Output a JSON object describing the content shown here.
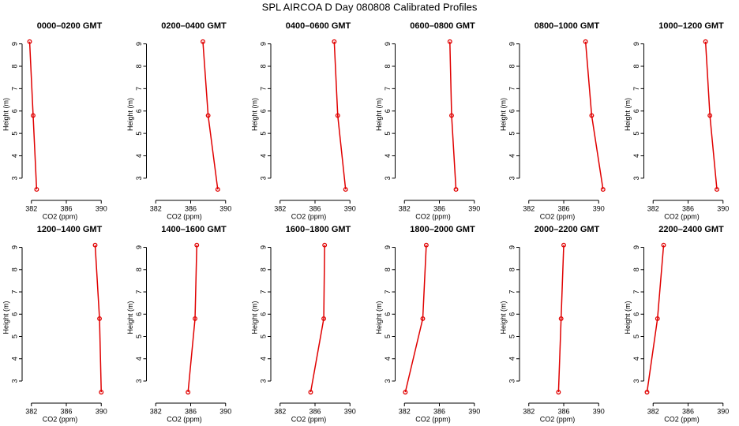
{
  "title": "SPL AIRCOA D  Day 080808  Calibrated Profiles",
  "chart_data": [
    {
      "type": "line",
      "title": "0000–0200 GMT",
      "xlabel": "CO2 (ppm)",
      "ylabel": "Height (m)",
      "color": "#e00000",
      "y": [
        9.1,
        5.8,
        2.5
      ],
      "values": [
        381.8,
        382.2,
        382.6
      ],
      "xlim": [
        381.3,
        390.7
      ],
      "ylim": [
        2.15,
        9.55
      ],
      "xticks": [
        382,
        386,
        390
      ],
      "yticks": [
        3,
        4,
        5,
        6,
        7,
        8,
        9
      ]
    },
    {
      "type": "line",
      "title": "0200–0400 GMT",
      "xlabel": "CO2 (ppm)",
      "ylabel": "Height (m)",
      "color": "#e00000",
      "y": [
        9.1,
        5.8,
        2.5
      ],
      "values": [
        387.4,
        388.0,
        389.1
      ],
      "xlim": [
        381.3,
        390.7
      ],
      "ylim": [
        2.15,
        9.55
      ],
      "xticks": [
        382,
        386,
        390
      ],
      "yticks": [
        3,
        4,
        5,
        6,
        7,
        8,
        9
      ]
    },
    {
      "type": "line",
      "title": "0400–0600 GMT",
      "xlabel": "CO2 (ppm)",
      "ylabel": "Height (m)",
      "color": "#e00000",
      "y": [
        9.1,
        5.8,
        2.5
      ],
      "values": [
        388.2,
        388.6,
        389.5
      ],
      "xlim": [
        381.3,
        390.7
      ],
      "ylim": [
        2.15,
        9.55
      ],
      "xticks": [
        382,
        386,
        390
      ],
      "yticks": [
        3,
        4,
        5,
        6,
        7,
        8,
        9
      ]
    },
    {
      "type": "line",
      "title": "0600–0800 GMT",
      "xlabel": "CO2 (ppm)",
      "ylabel": "Height (m)",
      "color": "#e00000",
      "y": [
        9.1,
        5.8,
        2.5
      ],
      "values": [
        387.2,
        387.4,
        387.9
      ],
      "xlim": [
        381.3,
        390.7
      ],
      "ylim": [
        2.15,
        9.55
      ],
      "xticks": [
        382,
        386,
        390
      ],
      "yticks": [
        3,
        4,
        5,
        6,
        7,
        8,
        9
      ]
    },
    {
      "type": "line",
      "title": "0800–1000 GMT",
      "xlabel": "CO2 (ppm)",
      "ylabel": "Height (m)",
      "color": "#e00000",
      "y": [
        9.1,
        5.8,
        2.5
      ],
      "values": [
        388.5,
        389.2,
        390.5
      ],
      "xlim": [
        381.3,
        390.7
      ],
      "ylim": [
        2.15,
        9.55
      ],
      "xticks": [
        382,
        386,
        390
      ],
      "yticks": [
        3,
        4,
        5,
        6,
        7,
        8,
        9
      ]
    },
    {
      "type": "line",
      "title": "1000–1200 GMT",
      "xlabel": "CO2 (ppm)",
      "ylabel": "Height (m)",
      "color": "#e00000",
      "y": [
        9.1,
        5.8,
        2.5
      ],
      "values": [
        388.0,
        388.5,
        389.3
      ],
      "xlim": [
        381.3,
        390.7
      ],
      "ylim": [
        2.15,
        9.55
      ],
      "xticks": [
        382,
        386,
        390
      ],
      "yticks": [
        3,
        4,
        5,
        6,
        7,
        8,
        9
      ]
    },
    {
      "type": "line",
      "title": "1200–1400 GMT",
      "xlabel": "CO2 (ppm)",
      "ylabel": "Height (m)",
      "color": "#e00000",
      "y": [
        9.1,
        5.8,
        2.5
      ],
      "values": [
        389.3,
        389.8,
        390.0
      ],
      "xlim": [
        381.3,
        390.7
      ],
      "ylim": [
        2.15,
        9.55
      ],
      "xticks": [
        382,
        386,
        390
      ],
      "yticks": [
        3,
        4,
        5,
        6,
        7,
        8,
        9
      ]
    },
    {
      "type": "line",
      "title": "1400–1600 GMT",
      "xlabel": "CO2 (ppm)",
      "ylabel": "Height (m)",
      "color": "#e00000",
      "y": [
        9.1,
        5.8,
        2.5
      ],
      "values": [
        386.7,
        386.5,
        385.7
      ],
      "xlim": [
        381.3,
        390.7
      ],
      "ylim": [
        2.15,
        9.55
      ],
      "xticks": [
        382,
        386,
        390
      ],
      "yticks": [
        3,
        4,
        5,
        6,
        7,
        8,
        9
      ]
    },
    {
      "type": "line",
      "title": "1600–1800 GMT",
      "xlabel": "CO2 (ppm)",
      "ylabel": "Height (m)",
      "color": "#e00000",
      "y": [
        9.1,
        5.8,
        2.5
      ],
      "values": [
        387.1,
        387.0,
        385.5
      ],
      "xlim": [
        381.3,
        390.7
      ],
      "ylim": [
        2.15,
        9.55
      ],
      "xticks": [
        382,
        386,
        390
      ],
      "yticks": [
        3,
        4,
        5,
        6,
        7,
        8,
        9
      ]
    },
    {
      "type": "line",
      "title": "1800–2000 GMT",
      "xlabel": "CO2 (ppm)",
      "ylabel": "Height (m)",
      "color": "#e00000",
      "y": [
        9.1,
        5.8,
        2.5
      ],
      "values": [
        384.5,
        384.1,
        382.1
      ],
      "xlim": [
        381.3,
        390.7
      ],
      "ylim": [
        2.15,
        9.55
      ],
      "xticks": [
        382,
        386,
        390
      ],
      "yticks": [
        3,
        4,
        5,
        6,
        7,
        8,
        9
      ]
    },
    {
      "type": "line",
      "title": "2000–2200 GMT",
      "xlabel": "CO2 (ppm)",
      "ylabel": "Height (m)",
      "color": "#e00000",
      "y": [
        9.1,
        5.8,
        2.5
      ],
      "values": [
        386.0,
        385.7,
        385.4
      ],
      "xlim": [
        381.3,
        390.7
      ],
      "ylim": [
        2.15,
        9.55
      ],
      "xticks": [
        382,
        386,
        390
      ],
      "yticks": [
        3,
        4,
        5,
        6,
        7,
        8,
        9
      ]
    },
    {
      "type": "line",
      "title": "2200–2400 GMT",
      "xlabel": "CO2 (ppm)",
      "ylabel": "Height (m)",
      "color": "#e00000",
      "y": [
        9.1,
        5.8,
        2.5
      ],
      "values": [
        383.2,
        382.5,
        381.3
      ],
      "xlim": [
        381.3,
        390.7
      ],
      "ylim": [
        2.15,
        9.55
      ],
      "xticks": [
        382,
        386,
        390
      ],
      "yticks": [
        3,
        4,
        5,
        6,
        7,
        8,
        9
      ]
    }
  ]
}
